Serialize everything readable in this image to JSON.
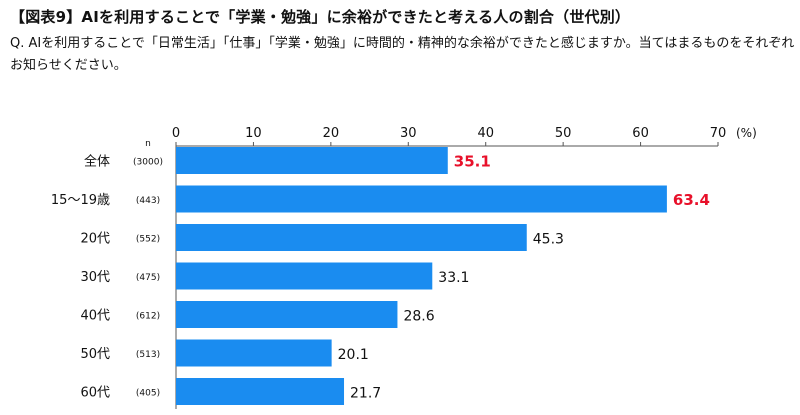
{
  "title": "【図表9】AIを利用することで「学業・勉強」に余裕ができたと考える人の割合（世代別）",
  "question": "Q. AIを利用することで「日常生活」「仕事」「学業・勉強」に時間的・精神的な余裕ができたと感じますか。当てはまるものをそれぞれお知らせください。",
  "colors": {
    "bar": "#1a8cf0",
    "highlight_text": "#e8102a",
    "axis": "#555555"
  },
  "chart_data": {
    "type": "bar",
    "orientation": "horizontal",
    "title": "AIを利用することで「学業・勉強」に余裕ができたと考える人の割合（世代別）",
    "n_header": "n",
    "unit": "(%)",
    "xlim": [
      0,
      70
    ],
    "ticks": [
      "0",
      "10",
      "20",
      "30",
      "40",
      "50",
      "60",
      "70"
    ],
    "tick_values": [
      0,
      10,
      20,
      30,
      40,
      50,
      60,
      70
    ],
    "categories": [
      "全体",
      "15～19歳",
      "20代",
      "30代",
      "40代",
      "50代",
      "60代"
    ],
    "n": [
      "(3000)",
      "(443)",
      "(552)",
      "(475)",
      "(612)",
      "(513)",
      "(405)"
    ],
    "values": [
      35.1,
      63.4,
      45.3,
      33.1,
      28.6,
      20.1,
      21.7
    ],
    "value_labels": [
      "35.1",
      "63.4",
      "45.3",
      "33.1",
      "28.6",
      "20.1",
      "21.7"
    ],
    "highlighted": [
      true,
      true,
      false,
      false,
      false,
      false,
      false
    ]
  }
}
